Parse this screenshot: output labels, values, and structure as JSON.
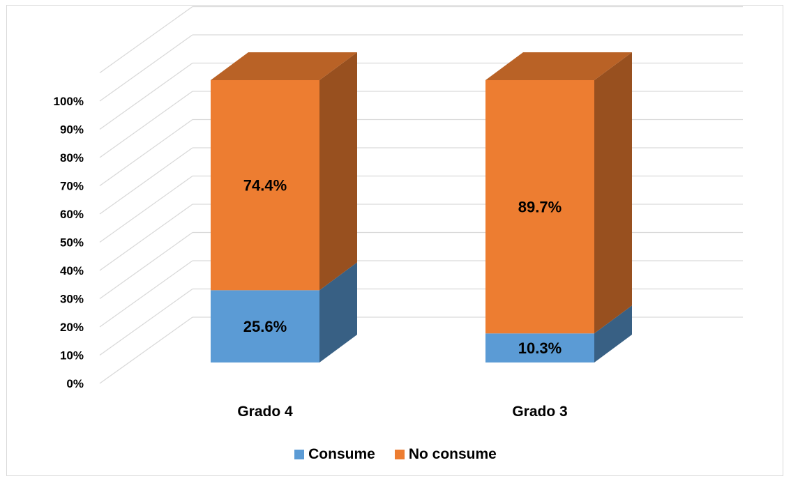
{
  "chart_data": {
    "type": "bar",
    "stacked": true,
    "three_d": true,
    "categories": [
      "Grado 4",
      "Grado 3"
    ],
    "series": [
      {
        "name": "Consume",
        "values": [
          25.6,
          10.3
        ],
        "color": "#5b9bd5",
        "labels": [
          "25.6%",
          "10.3%"
        ]
      },
      {
        "name": "No consume",
        "values": [
          74.4,
          89.7
        ],
        "color": "#ed7d31",
        "labels": [
          "74.4%",
          "89.7%"
        ]
      }
    ],
    "yticks": [
      "0%",
      "10%",
      "20%",
      "30%",
      "40%",
      "50%",
      "60%",
      "70%",
      "80%",
      "90%",
      "100%"
    ],
    "ylim": [
      0,
      100
    ],
    "grid": true,
    "legend": "bottom"
  }
}
